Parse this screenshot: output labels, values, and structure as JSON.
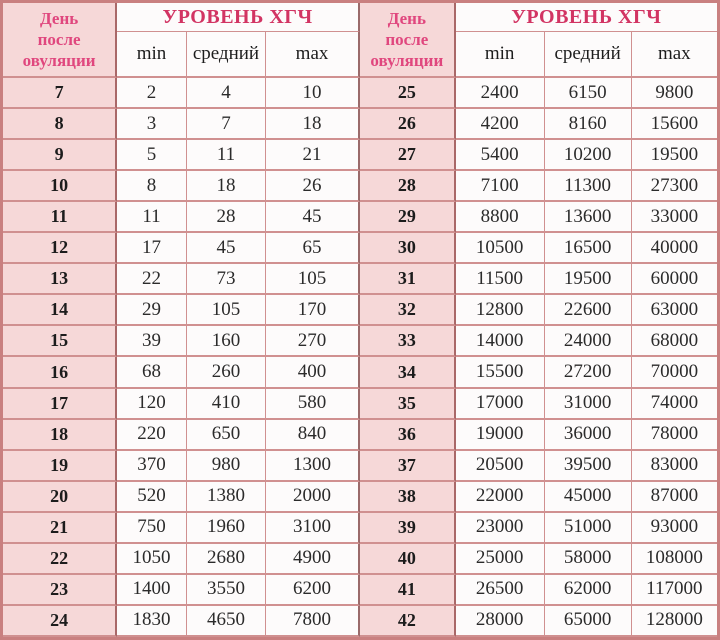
{
  "header": {
    "day_lines": [
      "День",
      "после",
      "овуляции"
    ],
    "level_label": "УРОВЕНЬ ХГЧ",
    "sub": [
      "min",
      "средний",
      "max"
    ]
  },
  "colors": {
    "accent_day_header": "#e0477e",
    "accent_level_header": "#d23463",
    "day_column_bg": "#f6d8d8",
    "cell_bg": "#fdfbfb",
    "border_light": "#d09090",
    "border_dark": "#a96868",
    "outer_border": "#c98080",
    "value_text": "#2b2b2b"
  },
  "layout": {
    "left_rows": [
      0,
      18
    ],
    "right_rows": [
      18,
      36
    ]
  },
  "chart_data": {
    "type": "table",
    "title": "УРОВЕНЬ ХГЧ",
    "columns": [
      "День после овуляции",
      "min",
      "средний",
      "max"
    ],
    "rows": [
      [
        7,
        2,
        4,
        10
      ],
      [
        8,
        3,
        7,
        18
      ],
      [
        9,
        5,
        11,
        21
      ],
      [
        10,
        8,
        18,
        26
      ],
      [
        11,
        11,
        28,
        45
      ],
      [
        12,
        17,
        45,
        65
      ],
      [
        13,
        22,
        73,
        105
      ],
      [
        14,
        29,
        105,
        170
      ],
      [
        15,
        39,
        160,
        270
      ],
      [
        16,
        68,
        260,
        400
      ],
      [
        17,
        120,
        410,
        580
      ],
      [
        18,
        220,
        650,
        840
      ],
      [
        19,
        370,
        980,
        1300
      ],
      [
        20,
        520,
        1380,
        2000
      ],
      [
        21,
        750,
        1960,
        3100
      ],
      [
        22,
        1050,
        2680,
        4900
      ],
      [
        23,
        1400,
        3550,
        6200
      ],
      [
        24,
        1830,
        4650,
        7800
      ],
      [
        25,
        2400,
        6150,
        9800
      ],
      [
        26,
        4200,
        8160,
        15600
      ],
      [
        27,
        5400,
        10200,
        19500
      ],
      [
        28,
        7100,
        11300,
        27300
      ],
      [
        29,
        8800,
        13600,
        33000
      ],
      [
        30,
        10500,
        16500,
        40000
      ],
      [
        31,
        11500,
        19500,
        60000
      ],
      [
        32,
        12800,
        22600,
        63000
      ],
      [
        33,
        14000,
        24000,
        68000
      ],
      [
        34,
        15500,
        27200,
        70000
      ],
      [
        35,
        17000,
        31000,
        74000
      ],
      [
        36,
        19000,
        36000,
        78000
      ],
      [
        37,
        20500,
        39500,
        83000
      ],
      [
        38,
        22000,
        45000,
        87000
      ],
      [
        39,
        23000,
        51000,
        93000
      ],
      [
        40,
        25000,
        58000,
        108000
      ],
      [
        41,
        26500,
        62000,
        117000
      ],
      [
        42,
        28000,
        65000,
        128000
      ]
    ]
  }
}
